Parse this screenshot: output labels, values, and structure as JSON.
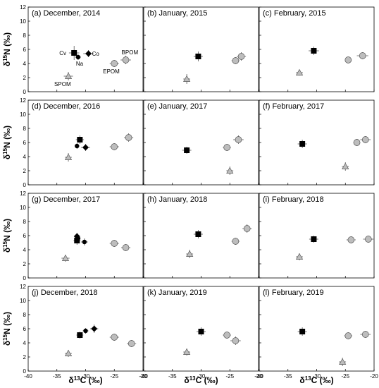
{
  "chart_data": {
    "type": "scatter",
    "xlabel": "δ13C (‰)",
    "ylabel": "δ15N (‰)",
    "xlim": [
      -40,
      -20
    ],
    "ylim": [
      0,
      12
    ],
    "xticks": [
      -40,
      -35,
      -30,
      -25,
      -20
    ],
    "yticks": [
      0,
      2,
      4,
      6,
      8,
      10,
      12
    ],
    "grid": false,
    "styles": {
      "black_square": {
        "fill": "#000000"
      },
      "black_circle": {
        "fill": "#000000"
      },
      "black_diamond": {
        "fill": "#000000"
      },
      "triangle": {
        "fill": "#bdbdbd"
      },
      "gray_circle": {
        "fill": "#bdbdbd"
      }
    },
    "panels": [
      {
        "title": "(a) December, 2014",
        "points": [
          {
            "label": "Cv",
            "style": "black_square",
            "x": -32.0,
            "y": 5.5,
            "xerr": 0.9,
            "yerr": 1.0
          },
          {
            "label": "Co",
            "style": "black_diamond",
            "x": -29.5,
            "y": 5.4,
            "xerr": 0.9,
            "yerr": 0.5
          },
          {
            "label": "Na",
            "style": "black_circle",
            "x": -31.3,
            "y": 4.9,
            "xerr": 0.5,
            "yerr": 0.4
          },
          {
            "label": "BPOM",
            "style": "gray_circle",
            "x": -23.0,
            "y": 4.5,
            "xerr": 0.9,
            "yerr": 0.6
          },
          {
            "label": "EPOM",
            "style": "gray_circle",
            "x": -25.0,
            "y": 4.0,
            "xerr": 0.8,
            "yerr": 0.5
          },
          {
            "label": "SPOM",
            "style": "triangle",
            "x": -33.0,
            "y": 2.2,
            "xerr": 0.8,
            "yerr": 0.6
          }
        ],
        "annotations": [
          "Cv",
          "Co",
          "Na",
          "BPOM",
          "EPOM",
          "SPOM"
        ]
      },
      {
        "title": "(b) January, 2015",
        "points": [
          {
            "style": "black_square",
            "x": -30.5,
            "y": 5.0,
            "xerr": 0.8,
            "yerr": 0.7
          },
          {
            "style": "gray_circle",
            "x": -23.0,
            "y": 5.0,
            "xerr": 0.8,
            "yerr": 0.6
          },
          {
            "style": "gray_circle",
            "x": -24.0,
            "y": 4.4,
            "xerr": 0.7,
            "yerr": 0.5
          },
          {
            "style": "triangle",
            "x": -32.5,
            "y": 1.8,
            "xerr": 0.6,
            "yerr": 0.7
          }
        ]
      },
      {
        "title": "(c) February, 2015",
        "points": [
          {
            "style": "black_square",
            "x": -30.5,
            "y": 5.8,
            "xerr": 0.9,
            "yerr": 0.6
          },
          {
            "style": "gray_circle",
            "x": -22.0,
            "y": 5.1,
            "xerr": 1.0,
            "yerr": 0.5
          },
          {
            "style": "gray_circle",
            "x": -24.5,
            "y": 4.5,
            "xerr": 0.6,
            "yerr": 0.4
          },
          {
            "style": "triangle",
            "x": -33.0,
            "y": 2.7,
            "xerr": 0.6,
            "yerr": 0.4
          }
        ]
      },
      {
        "title": "(d) December, 2016",
        "points": [
          {
            "style": "black_square",
            "x": -31.0,
            "y": 6.4,
            "xerr": 0.7,
            "yerr": 0.6
          },
          {
            "style": "black_circle",
            "x": -31.5,
            "y": 5.5,
            "xerr": 0.4,
            "yerr": 0.4
          },
          {
            "style": "black_diamond",
            "x": -30.0,
            "y": 5.3,
            "xerr": 0.8,
            "yerr": 0.5
          },
          {
            "style": "gray_circle",
            "x": -22.5,
            "y": 6.7,
            "xerr": 0.8,
            "yerr": 0.6
          },
          {
            "style": "gray_circle",
            "x": -25.0,
            "y": 5.4,
            "xerr": 0.8,
            "yerr": 0.5
          },
          {
            "style": "triangle",
            "x": -33.0,
            "y": 3.9,
            "xerr": 0.6,
            "yerr": 0.6
          }
        ]
      },
      {
        "title": "(e) January, 2017",
        "points": [
          {
            "style": "black_square",
            "x": -32.5,
            "y": 4.9,
            "xerr": 0.8,
            "yerr": 0.5
          },
          {
            "style": "gray_circle",
            "x": -23.5,
            "y": 6.4,
            "xerr": 0.9,
            "yerr": 0.6
          },
          {
            "style": "gray_circle",
            "x": -25.5,
            "y": 5.3,
            "xerr": 0.7,
            "yerr": 0.5
          },
          {
            "style": "triangle",
            "x": -25.0,
            "y": 2.0,
            "xerr": 0.6,
            "yerr": 0.6
          }
        ]
      },
      {
        "title": "(f) February, 2017",
        "points": [
          {
            "style": "black_square",
            "x": -32.5,
            "y": 5.8,
            "xerr": 0.8,
            "yerr": 0.6
          },
          {
            "style": "gray_circle",
            "x": -21.5,
            "y": 6.4,
            "xerr": 0.9,
            "yerr": 0.5
          },
          {
            "style": "gray_circle",
            "x": -23.0,
            "y": 6.0,
            "xerr": 0.6,
            "yerr": 0.5
          },
          {
            "style": "triangle",
            "x": -25.0,
            "y": 2.6,
            "xerr": 0.6,
            "yerr": 0.6
          }
        ]
      },
      {
        "title": "(g) December, 2017",
        "points": [
          {
            "style": "black_diamond",
            "x": -31.5,
            "y": 5.9,
            "xerr": 0.5,
            "yerr": 0.5
          },
          {
            "style": "black_circle",
            "x": -31.3,
            "y": 5.6,
            "xerr": 0.4,
            "yerr": 0.4
          },
          {
            "style": "black_square",
            "x": -31.5,
            "y": 5.3,
            "xerr": 0.6,
            "yerr": 0.6
          },
          {
            "style": "black_circle",
            "x": -30.2,
            "y": 5.1,
            "xerr": 0.6,
            "yerr": 0.5
          },
          {
            "style": "gray_circle",
            "x": -25.0,
            "y": 4.9,
            "xerr": 0.8,
            "yerr": 0.5
          },
          {
            "style": "gray_circle",
            "x": -23.0,
            "y": 4.3,
            "xerr": 0.8,
            "yerr": 0.5
          },
          {
            "style": "triangle",
            "x": -33.5,
            "y": 2.8,
            "xerr": 0.7,
            "yerr": 0.5
          }
        ]
      },
      {
        "title": "(h) January, 2018",
        "points": [
          {
            "style": "black_square",
            "x": -30.5,
            "y": 6.2,
            "xerr": 0.8,
            "yerr": 0.6
          },
          {
            "style": "gray_circle",
            "x": -22.0,
            "y": 7.0,
            "xerr": 0.8,
            "yerr": 0.6
          },
          {
            "style": "gray_circle",
            "x": -24.0,
            "y": 5.2,
            "xerr": 0.7,
            "yerr": 0.5
          },
          {
            "style": "triangle",
            "x": -32.0,
            "y": 3.4,
            "xerr": 0.6,
            "yerr": 0.6
          }
        ]
      },
      {
        "title": "(i) February, 2018",
        "points": [
          {
            "style": "black_square",
            "x": -30.5,
            "y": 5.5,
            "xerr": 0.8,
            "yerr": 0.5
          },
          {
            "style": "gray_circle",
            "x": -24.0,
            "y": 5.4,
            "xerr": 0.8,
            "yerr": 0.5
          },
          {
            "style": "gray_circle",
            "x": -21.0,
            "y": 5.5,
            "xerr": 0.9,
            "yerr": 0.5
          },
          {
            "style": "triangle",
            "x": -33.0,
            "y": 3.0,
            "xerr": 0.6,
            "yerr": 0.5
          }
        ]
      },
      {
        "title": "(j) December, 2018",
        "points": [
          {
            "style": "black_square",
            "x": -31.0,
            "y": 5.1,
            "xerr": 0.6,
            "yerr": 0.5
          },
          {
            "style": "black_circle",
            "x": -30.0,
            "y": 5.7,
            "xerr": 0.5,
            "yerr": 0.4
          },
          {
            "style": "black_diamond",
            "x": -28.5,
            "y": 6.0,
            "xerr": 0.7,
            "yerr": 0.6
          },
          {
            "style": "gray_circle",
            "x": -25.0,
            "y": 4.8,
            "xerr": 0.8,
            "yerr": 0.5
          },
          {
            "style": "gray_circle",
            "x": -22.0,
            "y": 3.9,
            "xerr": 0.8,
            "yerr": 0.5
          },
          {
            "style": "triangle",
            "x": -33.0,
            "y": 2.5,
            "xerr": 0.6,
            "yerr": 0.5
          }
        ]
      },
      {
        "title": "(k) January, 2019",
        "points": [
          {
            "style": "black_square",
            "x": -30.0,
            "y": 5.6,
            "xerr": 0.8,
            "yerr": 0.6
          },
          {
            "style": "gray_circle",
            "x": -25.5,
            "y": 5.1,
            "xerr": 0.7,
            "yerr": 0.5
          },
          {
            "style": "gray_circle",
            "x": -24.0,
            "y": 4.3,
            "xerr": 0.9,
            "yerr": 0.6
          },
          {
            "style": "triangle",
            "x": -32.5,
            "y": 2.7,
            "xerr": 0.6,
            "yerr": 0.5
          }
        ]
      },
      {
        "title": "(l) February, 2019",
        "points": [
          {
            "style": "black_square",
            "x": -32.5,
            "y": 5.6,
            "xerr": 0.8,
            "yerr": 0.6
          },
          {
            "style": "gray_circle",
            "x": -24.5,
            "y": 5.0,
            "xerr": 0.7,
            "yerr": 0.5
          },
          {
            "style": "gray_circle",
            "x": -21.5,
            "y": 5.2,
            "xerr": 0.9,
            "yerr": 0.5
          },
          {
            "style": "triangle",
            "x": -25.5,
            "y": 1.3,
            "xerr": 0.6,
            "yerr": 0.6
          }
        ]
      }
    ]
  }
}
